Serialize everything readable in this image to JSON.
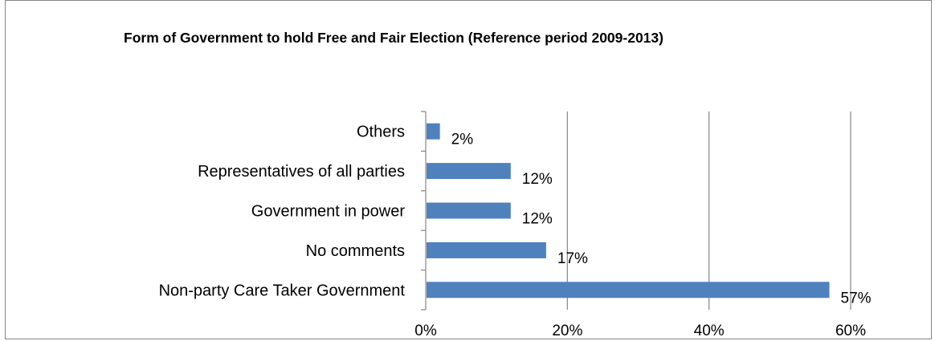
{
  "chart_data": {
    "type": "bar",
    "orientation": "horizontal",
    "title": "Form of Government to hold Free and Fair Election (Reference period 2009-2013)",
    "categories": [
      "Others",
      "Representatives of all parties",
      "Government in power",
      "No comments",
      "Non-party Care Taker Government"
    ],
    "values": [
      2,
      12,
      12,
      17,
      57
    ],
    "data_labels": [
      "2%",
      "12%",
      "12%",
      "17%",
      "57%"
    ],
    "xlim": [
      0,
      60
    ],
    "x_ticks": [
      0,
      20,
      40,
      60
    ],
    "x_tick_labels": [
      "0%",
      "20%",
      "40%",
      "60%"
    ],
    "grid": true,
    "legend": "none",
    "bar_color": "#4F81BD",
    "grid_color": "#868686"
  }
}
